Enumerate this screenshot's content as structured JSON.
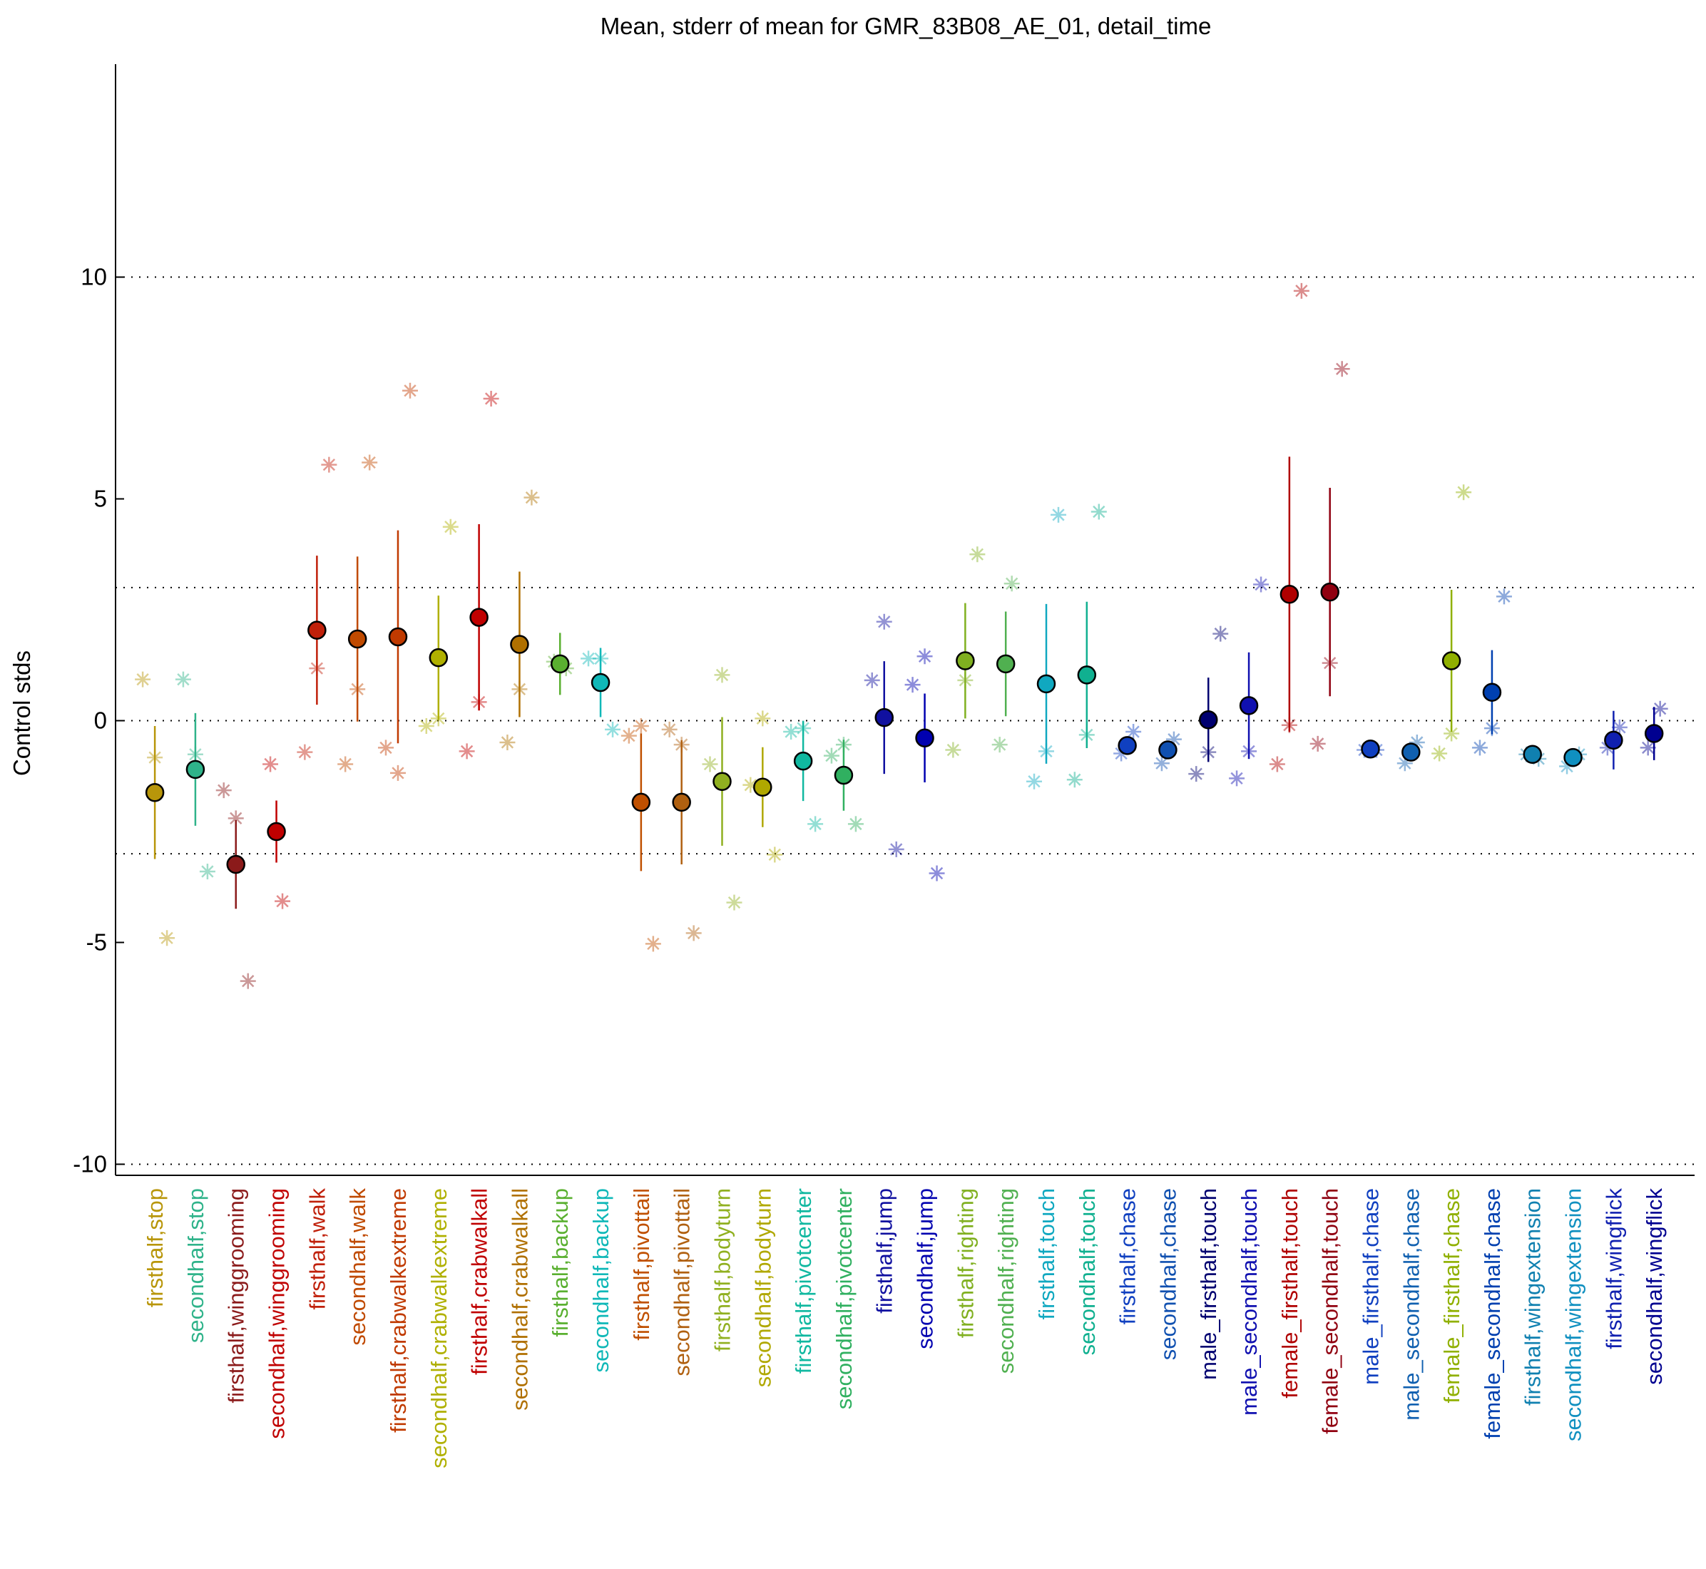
{
  "chart_data": {
    "type": "errorbar",
    "title": "Mean, stderr of mean for GMR_83B08_AE_01, detail_time",
    "y_label": "Control stds",
    "ylim": [
      -10.25,
      14.8
    ],
    "yticks": [
      -10,
      -5,
      0,
      5,
      10
    ],
    "xlim": [
      -0.97,
      38
    ],
    "reference_lines": [
      -10,
      -3,
      0,
      3,
      10
    ],
    "categories": [
      "firsthalf,stop",
      "secondhalf,stop",
      "firsthalf,winggrooming",
      "secondhalf,winggrooming",
      "firsthalf,walk",
      "secondhalf,walk",
      "firsthalf,crabwalkextreme",
      "secondhalf,crabwalkextreme",
      "firsthalf,crabwalkall",
      "secondhalf,crabwalkall",
      "firsthalf,backup",
      "secondhalf,backup",
      "firsthalf,pivottail",
      "secondhalf,pivottail",
      "firsthalf,bodyturn",
      "secondhalf,bodyturn",
      "firsthalf,pivotcenter",
      "secondhalf,pivotcenter",
      "firsthalf,jump",
      "secondhalf,jump",
      "firsthalf,righting",
      "secondhalf,righting",
      "firsthalf,touch",
      "secondhalf,touch",
      "firsthalf,chase",
      "secondhalf,chase",
      "male_firsthalf,touch",
      "male_secondhalf,touch",
      "female_firsthalf,touch",
      "female_secondhalf,touch",
      "male_firsthalf,chase",
      "male_secondhalf,chase",
      "female_firsthalf,chase",
      "female_secondhalf,chase",
      "firsthalf,wingextension",
      "secondhalf,wingextension",
      "firsthalf,wingflick",
      "secondhalf,wingflick"
    ],
    "colors": [
      "#b8960a",
      "#2fb38a",
      "#8b1a1a",
      "#c00000",
      "#c0200a",
      "#c04a00",
      "#c03a00",
      "#b0b000",
      "#c00000",
      "#b07000",
      "#5ab030",
      "#10b8b8",
      "#c05000",
      "#b06010",
      "#90b020",
      "#b0a800",
      "#10b8a0",
      "#30b060",
      "#1010a0",
      "#0000b0",
      "#80b020",
      "#50b050",
      "#10a8c0",
      "#10b090",
      "#1040c0",
      "#1050b0",
      "#000070",
      "#1010b0",
      "#b00000",
      "#900010",
      "#1040c0",
      "#1060b0",
      "#90b000",
      "#0040b0",
      "#1080b0",
      "#1090c0",
      "#1020b0",
      "#000090"
    ],
    "values": [
      -1.62,
      -1.1,
      -3.24,
      -2.5,
      2.04,
      1.84,
      1.89,
      1.42,
      2.33,
      1.72,
      1.28,
      0.86,
      -1.84,
      -1.84,
      -1.37,
      -1.5,
      -0.91,
      -1.23,
      0.07,
      -0.39,
      1.35,
      1.28,
      0.83,
      1.03,
      -0.56,
      -0.66,
      0.02,
      0.34,
      2.85,
      2.9,
      -0.64,
      -0.71,
      1.35,
      0.64,
      -0.76,
      -0.83,
      -0.44,
      -0.29
    ],
    "errors": [
      1.5,
      1.27,
      1.0,
      0.7,
      1.68,
      1.86,
      2.4,
      1.4,
      2.1,
      1.64,
      0.7,
      0.78,
      1.55,
      1.4,
      1.45,
      0.9,
      0.9,
      0.8,
      1.27,
      1.0,
      1.3,
      1.18,
      1.8,
      1.65,
      0.15,
      0.15,
      0.95,
      1.2,
      3.1,
      2.35,
      0.1,
      0.1,
      1.6,
      0.95,
      0.1,
      0.1,
      0.66,
      0.6
    ],
    "line_values": [
      [
        0.93,
        -0.83,
        -4.9
      ],
      [
        0.93,
        -0.76,
        -3.4
      ],
      [
        -1.57,
        -2.2,
        -5.87
      ],
      [
        -0.98,
        -4.07
      ],
      [
        -0.71,
        1.18,
        5.77
      ],
      [
        -0.98,
        0.71,
        5.82
      ],
      [
        -0.61,
        -1.18,
        7.44
      ],
      [
        -0.12,
        0.05,
        4.37
      ],
      [
        -0.69,
        0.42,
        7.26
      ],
      [
        -0.49,
        0.71,
        5.03
      ],
      [
        1.33,
        1.18
      ],
      [
        1.4,
        1.4,
        -0.2
      ],
      [
        -0.34,
        -0.12,
        -5.03
      ],
      [
        -0.2,
        -0.54,
        -4.79
      ],
      [
        -0.98,
        1.03,
        -4.1
      ],
      [
        -1.45,
        0.05,
        -3.02
      ],
      [
        -0.25,
        -0.17,
        -2.33
      ],
      [
        -0.79,
        -0.54,
        -2.33
      ],
      [
        0.91,
        2.23,
        -2.9
      ],
      [
        0.81,
        1.45,
        -3.44
      ],
      [
        -0.66,
        0.91,
        3.75
      ],
      [
        -0.54,
        3.09
      ],
      [
        -1.37,
        -0.69,
        4.64
      ],
      [
        -1.33,
        -0.32,
        4.71
      ],
      [
        -0.74,
        -0.25
      ],
      [
        -0.96,
        -0.42
      ],
      [
        -1.2,
        -0.71,
        1.96
      ],
      [
        -1.3,
        -0.69,
        3.07
      ],
      [
        -0.98,
        -0.1,
        9.69
      ],
      [
        -0.52,
        1.3,
        7.93
      ],
      [
        -0.66,
        -0.66
      ],
      [
        -0.96,
        -0.49
      ],
      [
        -0.74,
        -0.29,
        5.15
      ],
      [
        -0.61,
        -0.17,
        2.8
      ],
      [
        -0.76,
        -0.86
      ],
      [
        -1.03,
        -0.76
      ],
      [
        -0.61,
        -0.15
      ],
      [
        -0.61,
        0.27
      ]
    ]
  }
}
